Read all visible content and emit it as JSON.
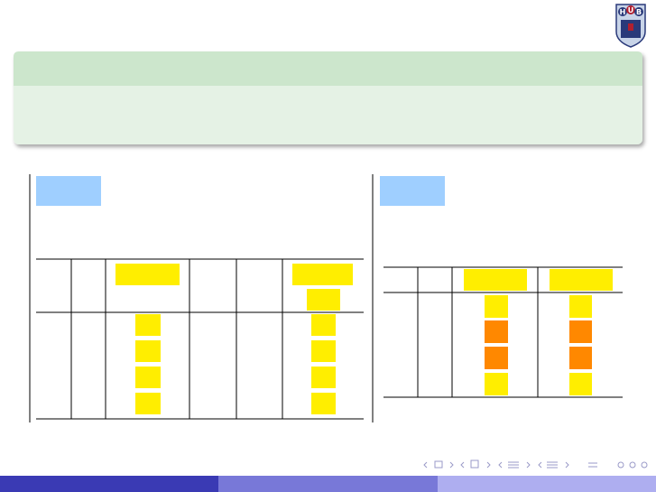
{
  "logo": {
    "letters": [
      "H",
      "U",
      "B"
    ]
  }
}
